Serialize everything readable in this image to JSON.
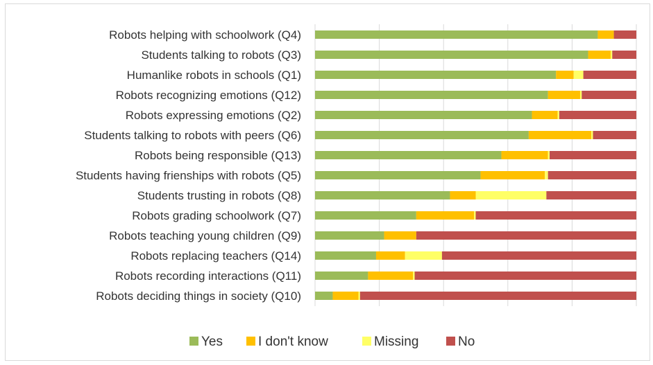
{
  "chart_data": {
    "type": "bar",
    "orientation": "horizontal",
    "stacked": true,
    "percent_stacked": true,
    "title": "",
    "xlabel": "",
    "ylabel": "",
    "xlim": [
      0,
      100
    ],
    "grid": "vertical",
    "legend_position": "bottom",
    "categories": [
      "Robots helping with schoolwork (Q4)",
      "Students talking to robots (Q3)",
      "Humanlike robots in schools (Q1)",
      "Robots recognizing emotions (Q12)",
      "Robots expressing emotions (Q2)",
      "Students talking to robots with peers (Q6)",
      "Robots being responsible (Q13)",
      "Students having frienships with robots (Q5)",
      "Students trusting in robots (Q8)",
      "Robots grading schoolwork (Q7)",
      "Robots teaching young children (Q9)",
      "Robots replacing teachers (Q14)",
      "Robots recording interactions (Q11)",
      "Robots deciding things in society (Q10)"
    ],
    "series": [
      {
        "name": "Yes",
        "color": "#9bbb59",
        "values": [
          88,
          85,
          75,
          72.5,
          67.5,
          66.5,
          58,
          51.5,
          42,
          31.5,
          21.5,
          19,
          16.5,
          5.5
        ]
      },
      {
        "name": "I don't know",
        "color": "#ffc000",
        "values": [
          5,
          7,
          5.5,
          10,
          8,
          19.5,
          14.5,
          20,
          8,
          18,
          10,
          9,
          14,
          8
        ]
      },
      {
        "name": "Missing",
        "color": "#ffff66",
        "values": [
          0,
          0.5,
          3,
          0.5,
          0.5,
          0.5,
          0.5,
          1,
          22,
          0.5,
          0,
          11.5,
          0.5,
          0.5
        ]
      },
      {
        "name": "No",
        "color": "#c0504d",
        "values": [
          7,
          7.5,
          16.5,
          17,
          24,
          13.5,
          27,
          27.5,
          28,
          50,
          68.5,
          60.5,
          69,
          86
        ]
      }
    ]
  }
}
